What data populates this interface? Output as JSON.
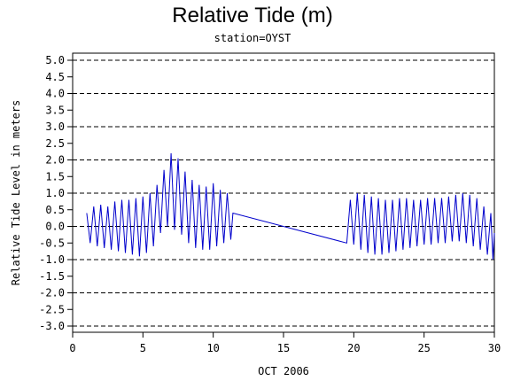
{
  "chart_data": {
    "type": "line",
    "title": "Relative Tide (m)",
    "subtitle": "station=OYST",
    "ylabel": "Relative Tide Level in meters",
    "xlabel": "OCT 2006",
    "xlim": [
      0,
      30
    ],
    "ylim": [
      -3.0,
      5.0
    ],
    "x_ticks": [
      0,
      5,
      10,
      15,
      20,
      25,
      30
    ],
    "y_ticks": [
      5.0,
      4.5,
      4.0,
      3.5,
      3.0,
      2.5,
      2.0,
      1.5,
      1.0,
      0.5,
      0.0,
      -0.5,
      -1.0,
      -1.5,
      -2.0,
      -2.5,
      -3.0
    ],
    "y_tick_labels": [
      "5.0",
      "4.5",
      "4.0",
      "3.5",
      "3.0",
      "2.5",
      "2.0",
      "1.5",
      "1.0",
      "0.5",
      "0.0",
      "-0.5",
      "-1.0",
      "-1.5",
      "-2.0",
      "-2.5",
      "-3.0"
    ],
    "gridlines_y": [
      5.0,
      4.0,
      3.0,
      2.0,
      1.0,
      0.0,
      -1.0,
      -2.0,
      -3.0
    ],
    "grid": "dashed horizontal",
    "series": [
      {
        "color": "#0000cc",
        "points": [
          [
            1.0,
            0.4
          ],
          [
            1.25,
            -0.5
          ],
          [
            1.5,
            0.6
          ],
          [
            1.75,
            -0.6
          ],
          [
            2.0,
            0.65
          ],
          [
            2.25,
            -0.65
          ],
          [
            2.5,
            0.6
          ],
          [
            2.75,
            -0.7
          ],
          [
            3.0,
            0.75
          ],
          [
            3.25,
            -0.75
          ],
          [
            3.5,
            0.8
          ],
          [
            3.75,
            -0.8
          ],
          [
            4.0,
            0.8
          ],
          [
            4.25,
            -0.85
          ],
          [
            4.5,
            0.85
          ],
          [
            4.75,
            -0.9
          ],
          [
            5.0,
            0.9
          ],
          [
            5.25,
            -0.8
          ],
          [
            5.5,
            1.0
          ],
          [
            5.75,
            -0.6
          ],
          [
            6.0,
            1.25
          ],
          [
            6.25,
            -0.2
          ],
          [
            6.5,
            1.7
          ],
          [
            6.75,
            0.0
          ],
          [
            7.0,
            2.2
          ],
          [
            7.25,
            -0.1
          ],
          [
            7.5,
            2.05
          ],
          [
            7.75,
            -0.25
          ],
          [
            8.0,
            1.65
          ],
          [
            8.25,
            -0.5
          ],
          [
            8.5,
            1.4
          ],
          [
            8.75,
            -0.65
          ],
          [
            9.0,
            1.25
          ],
          [
            9.25,
            -0.7
          ],
          [
            9.5,
            1.2
          ],
          [
            9.75,
            -0.7
          ],
          [
            10.0,
            1.3
          ],
          [
            10.25,
            -0.6
          ],
          [
            10.5,
            1.1
          ],
          [
            10.75,
            -0.5
          ],
          [
            11.0,
            1.0
          ],
          [
            11.25,
            -0.4
          ],
          [
            11.4,
            0.4
          ],
          [
            19.5,
            -0.5
          ],
          [
            19.75,
            0.8
          ],
          [
            20.0,
            -0.55
          ],
          [
            20.25,
            1.0
          ],
          [
            20.5,
            -0.7
          ],
          [
            20.75,
            0.95
          ],
          [
            21.0,
            -0.8
          ],
          [
            21.25,
            0.9
          ],
          [
            21.5,
            -0.85
          ],
          [
            21.75,
            0.85
          ],
          [
            22.0,
            -0.85
          ],
          [
            22.25,
            0.8
          ],
          [
            22.5,
            -0.8
          ],
          [
            22.75,
            0.8
          ],
          [
            23.0,
            -0.75
          ],
          [
            23.25,
            0.85
          ],
          [
            23.5,
            -0.7
          ],
          [
            23.75,
            0.85
          ],
          [
            24.0,
            -0.65
          ],
          [
            24.25,
            0.8
          ],
          [
            24.5,
            -0.6
          ],
          [
            24.75,
            0.8
          ],
          [
            25.0,
            -0.55
          ],
          [
            25.25,
            0.85
          ],
          [
            25.5,
            -0.55
          ],
          [
            25.75,
            0.85
          ],
          [
            26.0,
            -0.5
          ],
          [
            26.25,
            0.85
          ],
          [
            26.5,
            -0.5
          ],
          [
            26.75,
            0.9
          ],
          [
            27.0,
            -0.45
          ],
          [
            27.25,
            0.95
          ],
          [
            27.5,
            -0.45
          ],
          [
            27.75,
            1.0
          ],
          [
            28.0,
            -0.5
          ],
          [
            28.25,
            0.95
          ],
          [
            28.5,
            -0.6
          ],
          [
            28.75,
            0.85
          ],
          [
            29.0,
            -0.7
          ],
          [
            29.25,
            0.6
          ],
          [
            29.5,
            -0.85
          ],
          [
            29.75,
            0.4
          ],
          [
            29.9,
            -1.0
          ],
          [
            30.0,
            -0.2
          ]
        ]
      }
    ]
  }
}
